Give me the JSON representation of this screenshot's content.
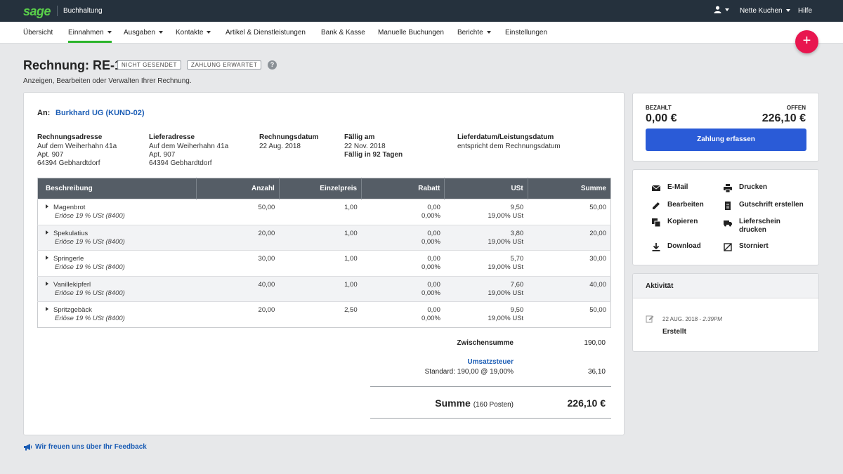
{
  "app": {
    "logo": "sage",
    "name": "Buchhaltung"
  },
  "topbar": {
    "client": "Nette Kuchen",
    "help": "Hilfe"
  },
  "nav": [
    {
      "label": "Übersicht"
    },
    {
      "label": "Einnahmen"
    },
    {
      "label": "Ausgaben"
    },
    {
      "label": "Kontakte"
    },
    {
      "label": "Artikel & Dienstleistungen"
    },
    {
      "label": "Bank & Kasse"
    },
    {
      "label": "Manuelle Buchungen"
    },
    {
      "label": "Berichte"
    },
    {
      "label": "Einstellungen"
    }
  ],
  "fab": {
    "label": "+"
  },
  "page": {
    "title": "Rechnung: RE-1",
    "badge_sent": "NICHT GESENDET",
    "badge_payment": "ZAHLUNG ERWARTET",
    "help": "?",
    "subtitle": "Anzeigen, Bearbeiten oder Verwalten Ihrer Rechnung."
  },
  "invoice": {
    "to_label": "An:",
    "customer": "Burkhard UG (KUND-02)",
    "billing_address": {
      "label": "Rechnungsadresse",
      "line1": "Auf dem Weiherhahn 41a",
      "line2": "Apt. 907",
      "line3": "64394 Gebhardtdorf"
    },
    "delivery_address": {
      "label": "Lieferadresse",
      "line1": "Auf dem Weiherhahn 41a",
      "line2": "Apt. 907",
      "line3": "64394 Gebhardtdorf"
    },
    "invoice_date": {
      "label": "Rechnungsdatum",
      "value": "22 Aug. 2018"
    },
    "due": {
      "label": "Fällig am",
      "value": "22 Nov. 2018",
      "note": "Fällig in 92 Tagen"
    },
    "delivery_date": {
      "label": "Lieferdatum/Leistungsdatum",
      "value": "entspricht dem Rechnungsdatum"
    }
  },
  "table": {
    "headers": [
      "Beschreibung",
      "Anzahl",
      "Einzelpreis",
      "Rabatt",
      "USt",
      "Summe"
    ],
    "rows": [
      {
        "name": "Magenbrot",
        "tax": "Erlöse 19 % USt (8400)",
        "qty": "50,00",
        "price": "1,00",
        "discount": "0,00",
        "discount_pct": "0,00%",
        "vat": "9,50",
        "vat_rate": "19,00% USt",
        "total": "50,00"
      },
      {
        "name": "Spekulatius",
        "tax": "Erlöse 19 % USt (8400)",
        "qty": "20,00",
        "price": "1,00",
        "discount": "0,00",
        "discount_pct": "0,00%",
        "vat": "3,80",
        "vat_rate": "19,00% USt",
        "total": "20,00"
      },
      {
        "name": "Springerle",
        "tax": "Erlöse 19 % USt (8400)",
        "qty": "30,00",
        "price": "1,00",
        "discount": "0,00",
        "discount_pct": "0,00%",
        "vat": "5,70",
        "vat_rate": "19,00% USt",
        "total": "30,00"
      },
      {
        "name": "Vanillekipferl",
        "tax": "Erlöse 19 % USt (8400)",
        "qty": "40,00",
        "price": "1,00",
        "discount": "0,00",
        "discount_pct": "0,00%",
        "vat": "7,60",
        "vat_rate": "19,00% USt",
        "total": "40,00"
      },
      {
        "name": "Spritzgebäck",
        "tax": "Erlöse 19 % USt (8400)",
        "qty": "20,00",
        "price": "2,50",
        "discount": "0,00",
        "discount_pct": "0,00%",
        "vat": "9,50",
        "vat_rate": "19,00% USt",
        "total": "50,00"
      }
    ]
  },
  "totals": {
    "subtotal_label": "Zwischensumme",
    "subtotal": "190,00",
    "vat_label": "Umsatzsteuer",
    "vat_detail": "Standard: 190,00 @ 19,00%",
    "vat_value": "36,10",
    "sum_label": "Summe",
    "sum_count": "(160 Posten)",
    "sum_value": "226,10 €"
  },
  "payment": {
    "paid_label": "BEZAHLT",
    "paid": "0,00 €",
    "open_label": "OFFEN",
    "open": "226,10 €",
    "button": "Zahlung erfassen"
  },
  "actions": {
    "email": "E-Mail",
    "print": "Drucken",
    "edit": "Bearbeiten",
    "credit": "Gutschrift erstellen",
    "copy": "Kopieren",
    "delivery_note_1": "Lieferschein",
    "delivery_note_2": "drucken",
    "download": "Download",
    "cancel": "Storniert"
  },
  "activity": {
    "title": "Aktivität",
    "date": "22 AUG. 2018 -",
    "time": "2:39PM",
    "text": "Erstellt"
  },
  "feedback": {
    "label": "Wir freuen uns über Ihr Feedback"
  },
  "colors": {
    "brand_green": "#5ad04a",
    "primary_blue": "#2a5bd7",
    "fab_pink": "#e8164f",
    "topbar": "#25313d"
  }
}
